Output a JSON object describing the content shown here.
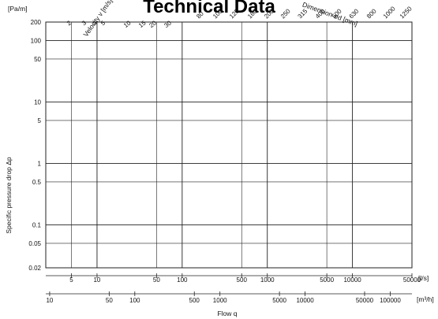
{
  "chart_data": {
    "type": "line",
    "title": "Technical Data",
    "ylabel": "Specific pressure drop  Δp",
    "y_unit": "[Pa/m]",
    "xlabel": "Flow q",
    "x_unit_top": "[l/s]",
    "x_unit_bottom": "[m³/h]",
    "y_scale": "log",
    "x_scale": "log",
    "ylim": [
      0.02,
      200
    ],
    "xlim_ls": [
      2.5,
      50000
    ],
    "grid": true,
    "y_ticks": [
      "200",
      "100",
      "50",
      "10",
      "5",
      "1",
      "0.5",
      "0.1",
      "0.05",
      "0.02"
    ],
    "x_ticks_top": [
      "5",
      "10",
      "50",
      "100",
      "500",
      "1000",
      "5000",
      "10000",
      "50000"
    ],
    "x_ticks_bottom": [
      "10",
      "50",
      "100",
      "500",
      "1000",
      "5000",
      "10000",
      "50000",
      "100000"
    ],
    "velocity_label": "Velocity v [m/s]",
    "velocity_values": [
      "2",
      "3",
      "4",
      "5",
      "10",
      "15",
      "20",
      "30"
    ],
    "dimension_label": "Dimension ød [mm]",
    "dimension_values": [
      "80",
      "100",
      "125",
      "160",
      "200",
      "250",
      "315",
      "400",
      "500",
      "630",
      "800",
      "1000",
      "1250"
    ]
  }
}
